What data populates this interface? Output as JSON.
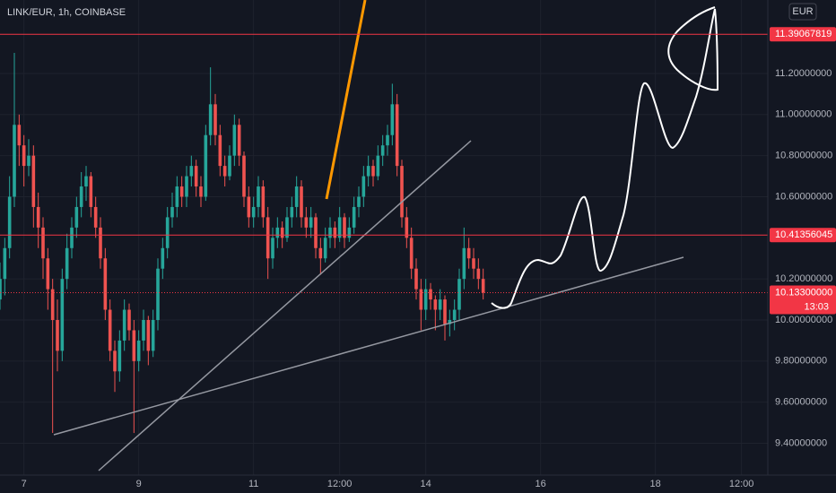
{
  "chart_data": {
    "type": "candlestick",
    "title": "LINK/EUR, 1h, COINBASE",
    "currency": "EUR",
    "countdown": "13:03",
    "up_color": "#26a69a",
    "down_color": "#ef5350",
    "grid": true,
    "xlim": [
      -10,
      311
    ],
    "xticks": [
      {
        "value": 0,
        "label": "7"
      },
      {
        "value": 48,
        "label": "9"
      },
      {
        "value": 96,
        "label": "11"
      },
      {
        "value": 132,
        "label": "12:00"
      },
      {
        "value": 168,
        "label": "14"
      },
      {
        "value": 216,
        "label": "16"
      },
      {
        "value": 264,
        "label": "18"
      },
      {
        "value": 300,
        "label": "12:00"
      }
    ],
    "ylim": [
      9.2452,
      11.5576
    ],
    "yticks": [
      {
        "value": 9.4,
        "label": "9.40000000"
      },
      {
        "value": 9.6,
        "label": "9.60000000"
      },
      {
        "value": 9.8,
        "label": "9.80000000"
      },
      {
        "value": 10.0,
        "label": "10.00000000"
      },
      {
        "value": 10.2,
        "label": "10.20000000"
      },
      {
        "value": 10.6,
        "label": "10.60000000"
      },
      {
        "value": 10.8,
        "label": "10.80000000"
      },
      {
        "value": 11.0,
        "label": "11.00000000"
      },
      {
        "value": 11.2,
        "label": "11.20000000"
      }
    ],
    "price_lines": [
      {
        "value": 11.39067819,
        "label": "11.39067819",
        "color": "#f23645"
      },
      {
        "value": 10.41356045,
        "label": "10.41356045",
        "color": "#f23645"
      }
    ],
    "last_price": {
      "value": 10.133,
      "label": "10.13300000",
      "color": "#f23645"
    },
    "x": [
      -10,
      -8,
      -6,
      -4,
      -2,
      0,
      2,
      4,
      6,
      8,
      10,
      12,
      14,
      16,
      18,
      20,
      22,
      24,
      26,
      28,
      30,
      32,
      34,
      36,
      38,
      40,
      42,
      44,
      46,
      48,
      50,
      52,
      54,
      56,
      58,
      60,
      62,
      64,
      66,
      68,
      70,
      72,
      74,
      76,
      78,
      80,
      82,
      84,
      86,
      88,
      90,
      92,
      94,
      96,
      98,
      100,
      102,
      104,
      106,
      108,
      110,
      112,
      114,
      116,
      118,
      120,
      122,
      124,
      126,
      128,
      130,
      132,
      134,
      136,
      138,
      140,
      142,
      144,
      146,
      148,
      150,
      152,
      154,
      156,
      158,
      160,
      162,
      164,
      166,
      168,
      170,
      172,
      174,
      176,
      178,
      180,
      182,
      184,
      186,
      188,
      190,
      192
    ],
    "ohlc": [
      [
        10.1,
        10.28,
        10.05,
        10.2
      ],
      [
        10.2,
        10.4,
        10.12,
        10.35
      ],
      [
        10.35,
        10.7,
        10.3,
        10.6
      ],
      [
        10.6,
        11.3,
        10.55,
        10.95
      ],
      [
        10.95,
        11.0,
        10.75,
        10.85
      ],
      [
        10.85,
        10.9,
        10.65,
        10.75
      ],
      [
        10.75,
        10.88,
        10.7,
        10.8
      ],
      [
        10.8,
        10.85,
        10.45,
        10.55
      ],
      [
        10.55,
        10.62,
        10.35,
        10.45
      ],
      [
        10.45,
        10.5,
        10.2,
        10.3
      ],
      [
        10.3,
        10.35,
        10.05,
        10.15
      ],
      [
        10.15,
        10.2,
        9.45,
        10.0
      ],
      [
        10.0,
        10.1,
        9.75,
        9.85
      ],
      [
        9.85,
        10.25,
        9.8,
        10.2
      ],
      [
        10.2,
        10.42,
        10.15,
        10.35
      ],
      [
        10.35,
        10.5,
        10.3,
        10.45
      ],
      [
        10.45,
        10.6,
        10.4,
        10.55
      ],
      [
        10.55,
        10.72,
        10.5,
        10.65
      ],
      [
        10.65,
        10.75,
        10.58,
        10.7
      ],
      [
        10.7,
        10.72,
        10.5,
        10.55
      ],
      [
        10.55,
        10.6,
        10.4,
        10.45
      ],
      [
        10.45,
        10.5,
        10.25,
        10.3
      ],
      [
        10.3,
        10.35,
        10.0,
        10.05
      ],
      [
        10.05,
        10.1,
        9.8,
        9.85
      ],
      [
        9.85,
        9.9,
        9.65,
        9.75
      ],
      [
        9.75,
        9.95,
        9.7,
        9.9
      ],
      [
        9.9,
        10.1,
        9.85,
        10.05
      ],
      [
        10.05,
        10.08,
        9.9,
        9.95
      ],
      [
        9.95,
        10.0,
        9.45,
        9.8
      ],
      [
        9.8,
        9.95,
        9.75,
        9.9
      ],
      [
        9.9,
        10.05,
        9.85,
        10.0
      ],
      [
        10.0,
        10.02,
        9.78,
        9.85
      ],
      [
        9.85,
        10.05,
        9.82,
        10.0
      ],
      [
        10.0,
        10.3,
        9.95,
        10.25
      ],
      [
        10.25,
        10.4,
        10.2,
        10.35
      ],
      [
        10.35,
        10.55,
        10.3,
        10.5
      ],
      [
        10.5,
        10.62,
        10.45,
        10.55
      ],
      [
        10.55,
        10.7,
        10.5,
        10.65
      ],
      [
        10.65,
        10.7,
        10.55,
        10.6
      ],
      [
        10.6,
        10.75,
        10.55,
        10.7
      ],
      [
        10.7,
        10.8,
        10.65,
        10.75
      ],
      [
        10.75,
        10.78,
        10.6,
        10.65
      ],
      [
        10.65,
        10.7,
        10.55,
        10.6
      ],
      [
        10.6,
        10.95,
        10.58,
        10.9
      ],
      [
        10.9,
        11.23,
        10.85,
        11.05
      ],
      [
        11.05,
        11.1,
        10.85,
        10.9
      ],
      [
        10.9,
        10.95,
        10.7,
        10.75
      ],
      [
        10.75,
        10.8,
        10.65,
        10.7
      ],
      [
        10.7,
        10.85,
        10.68,
        10.8
      ],
      [
        10.8,
        11.0,
        10.75,
        10.95
      ],
      [
        10.95,
        10.98,
        10.75,
        10.8
      ],
      [
        10.8,
        10.82,
        10.55,
        10.6
      ],
      [
        10.6,
        10.65,
        10.45,
        10.5
      ],
      [
        10.5,
        10.6,
        10.45,
        10.55
      ],
      [
        10.55,
        10.7,
        10.5,
        10.65
      ],
      [
        10.65,
        10.68,
        10.45,
        10.5
      ],
      [
        10.5,
        10.55,
        10.2,
        10.3
      ],
      [
        10.3,
        10.45,
        10.25,
        10.4
      ],
      [
        10.4,
        10.5,
        10.35,
        10.45
      ],
      [
        10.45,
        10.48,
        10.35,
        10.4
      ],
      [
        10.4,
        10.55,
        10.38,
        10.5
      ],
      [
        10.5,
        10.6,
        10.45,
        10.55
      ],
      [
        10.55,
        10.7,
        10.5,
        10.65
      ],
      [
        10.65,
        10.68,
        10.45,
        10.5
      ],
      [
        10.5,
        10.55,
        10.4,
        10.45
      ],
      [
        10.45,
        10.55,
        10.4,
        10.5
      ],
      [
        10.5,
        10.52,
        10.3,
        10.35
      ],
      [
        10.35,
        10.4,
        10.22,
        10.3
      ],
      [
        10.3,
        10.45,
        10.28,
        10.4
      ],
      [
        10.4,
        10.5,
        10.35,
        10.45
      ],
      [
        10.45,
        10.48,
        10.35,
        10.4
      ],
      [
        10.4,
        10.55,
        10.38,
        10.5
      ],
      [
        10.5,
        10.52,
        10.35,
        10.4
      ],
      [
        10.4,
        10.5,
        10.38,
        10.45
      ],
      [
        10.45,
        10.6,
        10.42,
        10.55
      ],
      [
        10.55,
        10.65,
        10.5,
        10.6
      ],
      [
        10.6,
        10.75,
        10.55,
        10.7
      ],
      [
        10.7,
        10.8,
        10.65,
        10.75
      ],
      [
        10.75,
        10.78,
        10.65,
        10.7
      ],
      [
        10.7,
        10.85,
        10.68,
        10.8
      ],
      [
        10.8,
        10.9,
        10.75,
        10.85
      ],
      [
        10.85,
        10.95,
        10.8,
        10.9
      ],
      [
        10.9,
        11.15,
        10.85,
        11.05
      ],
      [
        11.05,
        11.1,
        10.7,
        10.75
      ],
      [
        10.75,
        10.78,
        10.45,
        10.5
      ],
      [
        10.5,
        10.55,
        10.35,
        10.4
      ],
      [
        10.4,
        10.45,
        10.2,
        10.25
      ],
      [
        10.25,
        10.3,
        10.1,
        10.15
      ],
      [
        10.15,
        10.2,
        9.95,
        10.05
      ],
      [
        10.05,
        10.2,
        10.0,
        10.15
      ],
      [
        10.15,
        10.18,
        10.05,
        10.1
      ],
      [
        10.1,
        10.12,
        9.95,
        10.05
      ],
      [
        10.05,
        10.15,
        10.0,
        10.1
      ],
      [
        10.1,
        10.12,
        9.9,
        9.98
      ],
      [
        9.98,
        10.05,
        9.92,
        10.0
      ],
      [
        10.0,
        10.1,
        9.95,
        10.05
      ],
      [
        10.05,
        10.25,
        10.0,
        10.2
      ],
      [
        10.2,
        10.45,
        10.15,
        10.35
      ],
      [
        10.35,
        10.4,
        10.25,
        10.3
      ],
      [
        10.3,
        10.35,
        10.2,
        10.25
      ],
      [
        10.25,
        10.3,
        10.15,
        10.2
      ],
      [
        10.2,
        10.25,
        10.1,
        10.133
      ]
    ]
  }
}
